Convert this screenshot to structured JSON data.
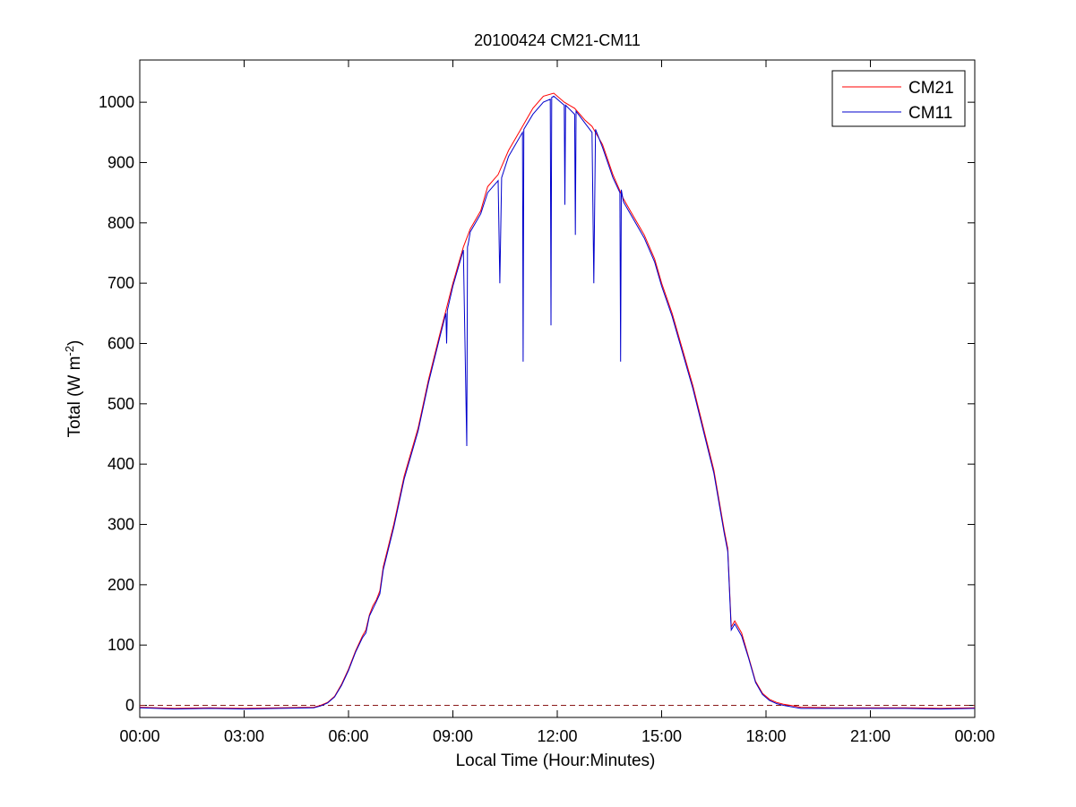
{
  "chart_data": {
    "type": "line",
    "title": "20100424 CM21-CM11",
    "xlabel": "Local Time (Hour:Minutes)",
    "ylabel": "Total (W m",
    "ylabel_sup": "-2",
    "ylabel_close": ")",
    "xlim": [
      0,
      24
    ],
    "ylim": [
      -20,
      1070
    ],
    "x_ticks": [
      0,
      3,
      6,
      9,
      12,
      15,
      18,
      21,
      24
    ],
    "x_tick_labels": [
      "00:00",
      "03:00",
      "06:00",
      "09:00",
      "12:00",
      "15:00",
      "18:00",
      "21:00",
      "00:00"
    ],
    "y_ticks": [
      0,
      100,
      200,
      300,
      400,
      500,
      600,
      700,
      800,
      900,
      1000
    ],
    "y_tick_labels": [
      "0",
      "100",
      "200",
      "300",
      "400",
      "500",
      "600",
      "700",
      "800",
      "900",
      "1000"
    ],
    "grid": false,
    "legend_position": "top-right",
    "reference_line": {
      "y": 0,
      "style": "dashed",
      "color": "#8b1a1a"
    },
    "series": [
      {
        "name": "CM21",
        "color": "#ff0000",
        "x": [
          0,
          0.5,
          1,
          2,
          3,
          4,
          5,
          5.2,
          5.4,
          5.6,
          5.8,
          6,
          6.2,
          6.4,
          6.5,
          6.6,
          6.7,
          6.8,
          6.9,
          7,
          7.3,
          7.6,
          8,
          8.3,
          8.6,
          9,
          9.3,
          9.5,
          9.8,
          10,
          10.3,
          10.6,
          11,
          11.3,
          11.6,
          11.9,
          12.2,
          12.5,
          12.8,
          13,
          13.3,
          13.6,
          13.9,
          14.2,
          14.5,
          14.8,
          15,
          15.3,
          15.6,
          15.9,
          16.2,
          16.5,
          16.8,
          16.9,
          17,
          17.1,
          17.3,
          17.5,
          17.7,
          17.9,
          18.1,
          18.3,
          18.5,
          18.7,
          19,
          20,
          21,
          22,
          23,
          24
        ],
        "y": [
          -3,
          -4,
          -5,
          -4,
          -5,
          -4,
          -3,
          0,
          5,
          15,
          35,
          60,
          90,
          115,
          125,
          150,
          165,
          175,
          190,
          230,
          300,
          380,
          460,
          540,
          610,
          700,
          760,
          790,
          820,
          860,
          880,
          920,
          960,
          990,
          1010,
          1015,
          1000,
          990,
          970,
          960,
          930,
          880,
          840,
          810,
          780,
          740,
          700,
          650,
          590,
          530,
          460,
          390,
          290,
          260,
          130,
          140,
          120,
          80,
          40,
          20,
          10,
          5,
          2,
          0,
          -3,
          -4,
          -4,
          -4,
          -5,
          -4
        ]
      },
      {
        "name": "CM11",
        "color": "#0000cc",
        "x": [
          0,
          0.5,
          1,
          2,
          3,
          4,
          5,
          5.2,
          5.4,
          5.6,
          5.8,
          6,
          6.2,
          6.4,
          6.5,
          6.6,
          6.7,
          6.8,
          6.9,
          7,
          7.3,
          7.6,
          8,
          8.3,
          8.6,
          8.8,
          8.82,
          8.84,
          9,
          9.3,
          9.4,
          9.42,
          9.44,
          9.5,
          9.8,
          10,
          10.3,
          10.35,
          10.4,
          10.6,
          11,
          11.02,
          11.04,
          11.3,
          11.6,
          11.8,
          11.82,
          11.84,
          11.9,
          12.2,
          12.22,
          12.24,
          12.5,
          12.52,
          12.54,
          12.8,
          13,
          13.05,
          13.1,
          13.3,
          13.6,
          13.8,
          13.82,
          13.84,
          13.9,
          14.2,
          14.5,
          14.8,
          15,
          15.3,
          15.6,
          15.9,
          16.2,
          16.5,
          16.8,
          16.9,
          17,
          17.1,
          17.3,
          17.5,
          17.7,
          17.9,
          18.1,
          18.3,
          18.5,
          18.7,
          19,
          20,
          21,
          22,
          23,
          24
        ],
        "y": [
          -4,
          -5,
          -6,
          -5,
          -6,
          -5,
          -4,
          -1,
          4,
          14,
          33,
          58,
          88,
          112,
          120,
          148,
          160,
          172,
          185,
          225,
          295,
          375,
          455,
          535,
          605,
          650,
          600,
          655,
          695,
          755,
          430,
          760,
          765,
          785,
          815,
          850,
          870,
          700,
          875,
          910,
          950,
          570,
          955,
          980,
          1000,
          1005,
          630,
          1008,
          1010,
          995,
          830,
          995,
          980,
          780,
          985,
          965,
          950,
          700,
          955,
          925,
          875,
          850,
          570,
          855,
          835,
          805,
          775,
          735,
          695,
          645,
          585,
          525,
          455,
          385,
          285,
          255,
          125,
          135,
          115,
          78,
          38,
          18,
          8,
          3,
          0,
          -2,
          -5,
          -5,
          -5,
          -5,
          -6,
          -5
        ]
      }
    ]
  }
}
